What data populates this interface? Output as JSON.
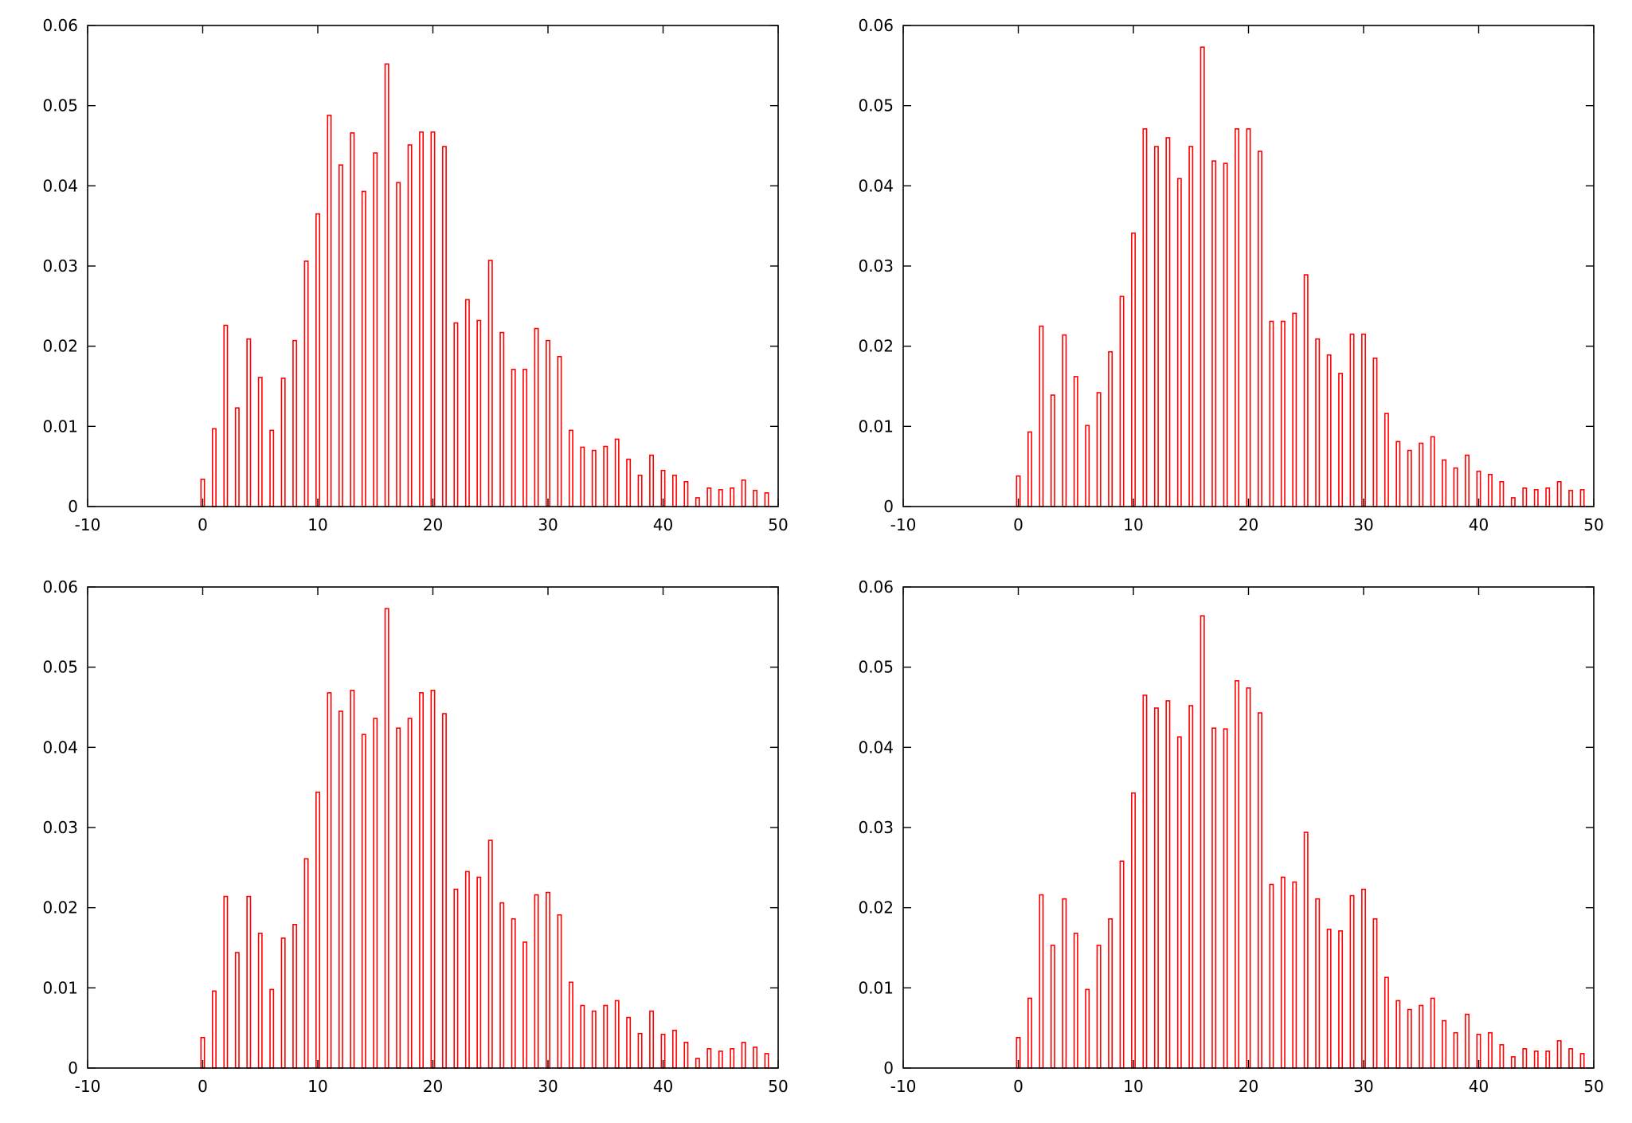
{
  "colors": {
    "bar_stroke": "#ff0000",
    "axis": "#000000",
    "background": "#ffffff"
  },
  "chart_data": [
    {
      "type": "bar",
      "title": "",
      "xlabel": "",
      "ylabel": "",
      "xlim": [
        -10,
        50
      ],
      "ylim": [
        0,
        0.06
      ],
      "xticks": [
        "-10",
        "0",
        "10",
        "20",
        "30",
        "40",
        "50"
      ],
      "yticks": [
        "0",
        "0.01",
        "0.02",
        "0.03",
        "0.04",
        "0.05",
        "0.06"
      ],
      "grid": false,
      "legend": "none",
      "x": [
        0,
        1,
        2,
        3,
        4,
        5,
        6,
        7,
        8,
        9,
        10,
        11,
        12,
        13,
        14,
        15,
        16,
        17,
        18,
        19,
        20,
        21,
        22,
        23,
        24,
        25,
        26,
        27,
        28,
        29,
        30,
        31,
        32,
        33,
        34,
        35,
        36,
        37,
        38,
        39,
        40,
        41,
        42,
        43,
        44,
        45,
        46,
        47,
        48,
        49
      ],
      "values": [
        0.0034,
        0.0097,
        0.0226,
        0.0123,
        0.0209,
        0.0161,
        0.0095,
        0.016,
        0.0207,
        0.0306,
        0.0365,
        0.0488,
        0.0426,
        0.0466,
        0.0393,
        0.0441,
        0.0552,
        0.0404,
        0.0451,
        0.0467,
        0.0467,
        0.0449,
        0.0229,
        0.0258,
        0.0232,
        0.0307,
        0.0217,
        0.0171,
        0.0171,
        0.0222,
        0.0207,
        0.0187,
        0.0095,
        0.0074,
        0.007,
        0.0075,
        0.0084,
        0.0059,
        0.0039,
        0.0064,
        0.0045,
        0.0039,
        0.0031,
        0.0011,
        0.0023,
        0.0021,
        0.0023,
        0.0033,
        0.002,
        0.0017
      ]
    },
    {
      "type": "bar",
      "title": "",
      "xlabel": "",
      "ylabel": "",
      "xlim": [
        -10,
        50
      ],
      "ylim": [
        0,
        0.06
      ],
      "xticks": [
        "-10",
        "0",
        "10",
        "20",
        "30",
        "40",
        "50"
      ],
      "yticks": [
        "0",
        "0.01",
        "0.02",
        "0.03",
        "0.04",
        "0.05",
        "0.06"
      ],
      "grid": false,
      "legend": "none",
      "x": [
        0,
        1,
        2,
        3,
        4,
        5,
        6,
        7,
        8,
        9,
        10,
        11,
        12,
        13,
        14,
        15,
        16,
        17,
        18,
        19,
        20,
        21,
        22,
        23,
        24,
        25,
        26,
        27,
        28,
        29,
        30,
        31,
        32,
        33,
        34,
        35,
        36,
        37,
        38,
        39,
        40,
        41,
        42,
        43,
        44,
        45,
        46,
        47,
        48,
        49
      ],
      "values": [
        0.0038,
        0.0093,
        0.0225,
        0.0139,
        0.0214,
        0.0162,
        0.0101,
        0.0142,
        0.0193,
        0.0262,
        0.0341,
        0.0471,
        0.0449,
        0.046,
        0.0409,
        0.0449,
        0.0573,
        0.0431,
        0.0428,
        0.0471,
        0.0471,
        0.0443,
        0.0231,
        0.0231,
        0.0241,
        0.0289,
        0.0209,
        0.0189,
        0.0166,
        0.0215,
        0.0215,
        0.0185,
        0.0116,
        0.0081,
        0.007,
        0.0079,
        0.0087,
        0.0058,
        0.0048,
        0.0064,
        0.0044,
        0.004,
        0.0031,
        0.0011,
        0.0023,
        0.0021,
        0.0023,
        0.0031,
        0.002,
        0.0021
      ]
    },
    {
      "type": "bar",
      "title": "",
      "xlabel": "",
      "ylabel": "",
      "xlim": [
        -10,
        50
      ],
      "ylim": [
        0,
        0.06
      ],
      "xticks": [
        "-10",
        "0",
        "10",
        "20",
        "30",
        "40",
        "50"
      ],
      "yticks": [
        "0",
        "0.01",
        "0.02",
        "0.03",
        "0.04",
        "0.05",
        "0.06"
      ],
      "grid": false,
      "legend": "none",
      "x": [
        0,
        1,
        2,
        3,
        4,
        5,
        6,
        7,
        8,
        9,
        10,
        11,
        12,
        13,
        14,
        15,
        16,
        17,
        18,
        19,
        20,
        21,
        22,
        23,
        24,
        25,
        26,
        27,
        28,
        29,
        30,
        31,
        32,
        33,
        34,
        35,
        36,
        37,
        38,
        39,
        40,
        41,
        42,
        43,
        44,
        45,
        46,
        47,
        48,
        49
      ],
      "values": [
        0.0038,
        0.0096,
        0.0214,
        0.0144,
        0.0214,
        0.0168,
        0.0098,
        0.0162,
        0.0179,
        0.0261,
        0.0344,
        0.0468,
        0.0445,
        0.0471,
        0.0416,
        0.0436,
        0.0573,
        0.0424,
        0.0436,
        0.0468,
        0.0471,
        0.0442,
        0.0223,
        0.0245,
        0.0238,
        0.0284,
        0.0206,
        0.0186,
        0.0157,
        0.0216,
        0.0219,
        0.0191,
        0.0107,
        0.0078,
        0.0071,
        0.0078,
        0.0084,
        0.0063,
        0.0043,
        0.0071,
        0.0042,
        0.0047,
        0.0032,
        0.0012,
        0.0024,
        0.0021,
        0.0024,
        0.0032,
        0.0026,
        0.0018
      ]
    },
    {
      "type": "bar",
      "title": "",
      "xlabel": "",
      "ylabel": "",
      "xlim": [
        -10,
        50
      ],
      "ylim": [
        0,
        0.06
      ],
      "xticks": [
        "-10",
        "0",
        "10",
        "20",
        "30",
        "40",
        "50"
      ],
      "yticks": [
        "0",
        "0.01",
        "0.02",
        "0.03",
        "0.04",
        "0.05",
        "0.06"
      ],
      "grid": false,
      "legend": "none",
      "x": [
        0,
        1,
        2,
        3,
        4,
        5,
        6,
        7,
        8,
        9,
        10,
        11,
        12,
        13,
        14,
        15,
        16,
        17,
        18,
        19,
        20,
        21,
        22,
        23,
        24,
        25,
        26,
        27,
        28,
        29,
        30,
        31,
        32,
        33,
        34,
        35,
        36,
        37,
        38,
        39,
        40,
        41,
        42,
        43,
        44,
        45,
        46,
        47,
        48,
        49
      ],
      "values": [
        0.0038,
        0.0087,
        0.0216,
        0.0153,
        0.0211,
        0.0168,
        0.0098,
        0.0153,
        0.0186,
        0.0258,
        0.0343,
        0.0465,
        0.0449,
        0.0458,
        0.0413,
        0.0452,
        0.0564,
        0.0424,
        0.0423,
        0.0483,
        0.0474,
        0.0443,
        0.0229,
        0.0238,
        0.0232,
        0.0294,
        0.0211,
        0.0173,
        0.0171,
        0.0215,
        0.0223,
        0.0186,
        0.0113,
        0.0084,
        0.0073,
        0.0078,
        0.0087,
        0.0059,
        0.0044,
        0.0067,
        0.0042,
        0.0044,
        0.0029,
        0.0014,
        0.0024,
        0.0021,
        0.0021,
        0.0034,
        0.0024,
        0.0018
      ]
    }
  ]
}
